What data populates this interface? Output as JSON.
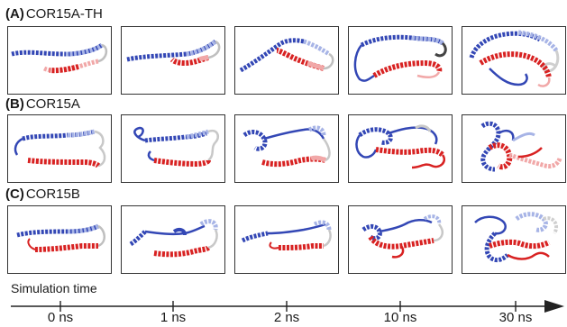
{
  "rows": [
    {
      "letter": "(A)",
      "name": "COR15A-TH"
    },
    {
      "letter": "(B)",
      "name": "COR15A"
    },
    {
      "letter": "(C)",
      "name": "COR15B"
    }
  ],
  "timeline": {
    "title": "Simulation time",
    "ticks": [
      "0 ns",
      "1 ns",
      "2 ns",
      "10 ns",
      "30 ns"
    ]
  },
  "colors": {
    "blue": "#3347b5",
    "lightblue": "#a7b4e6",
    "red": "#d82222",
    "lightred": "#f1a8a8",
    "white": "#d9d9d9"
  }
}
